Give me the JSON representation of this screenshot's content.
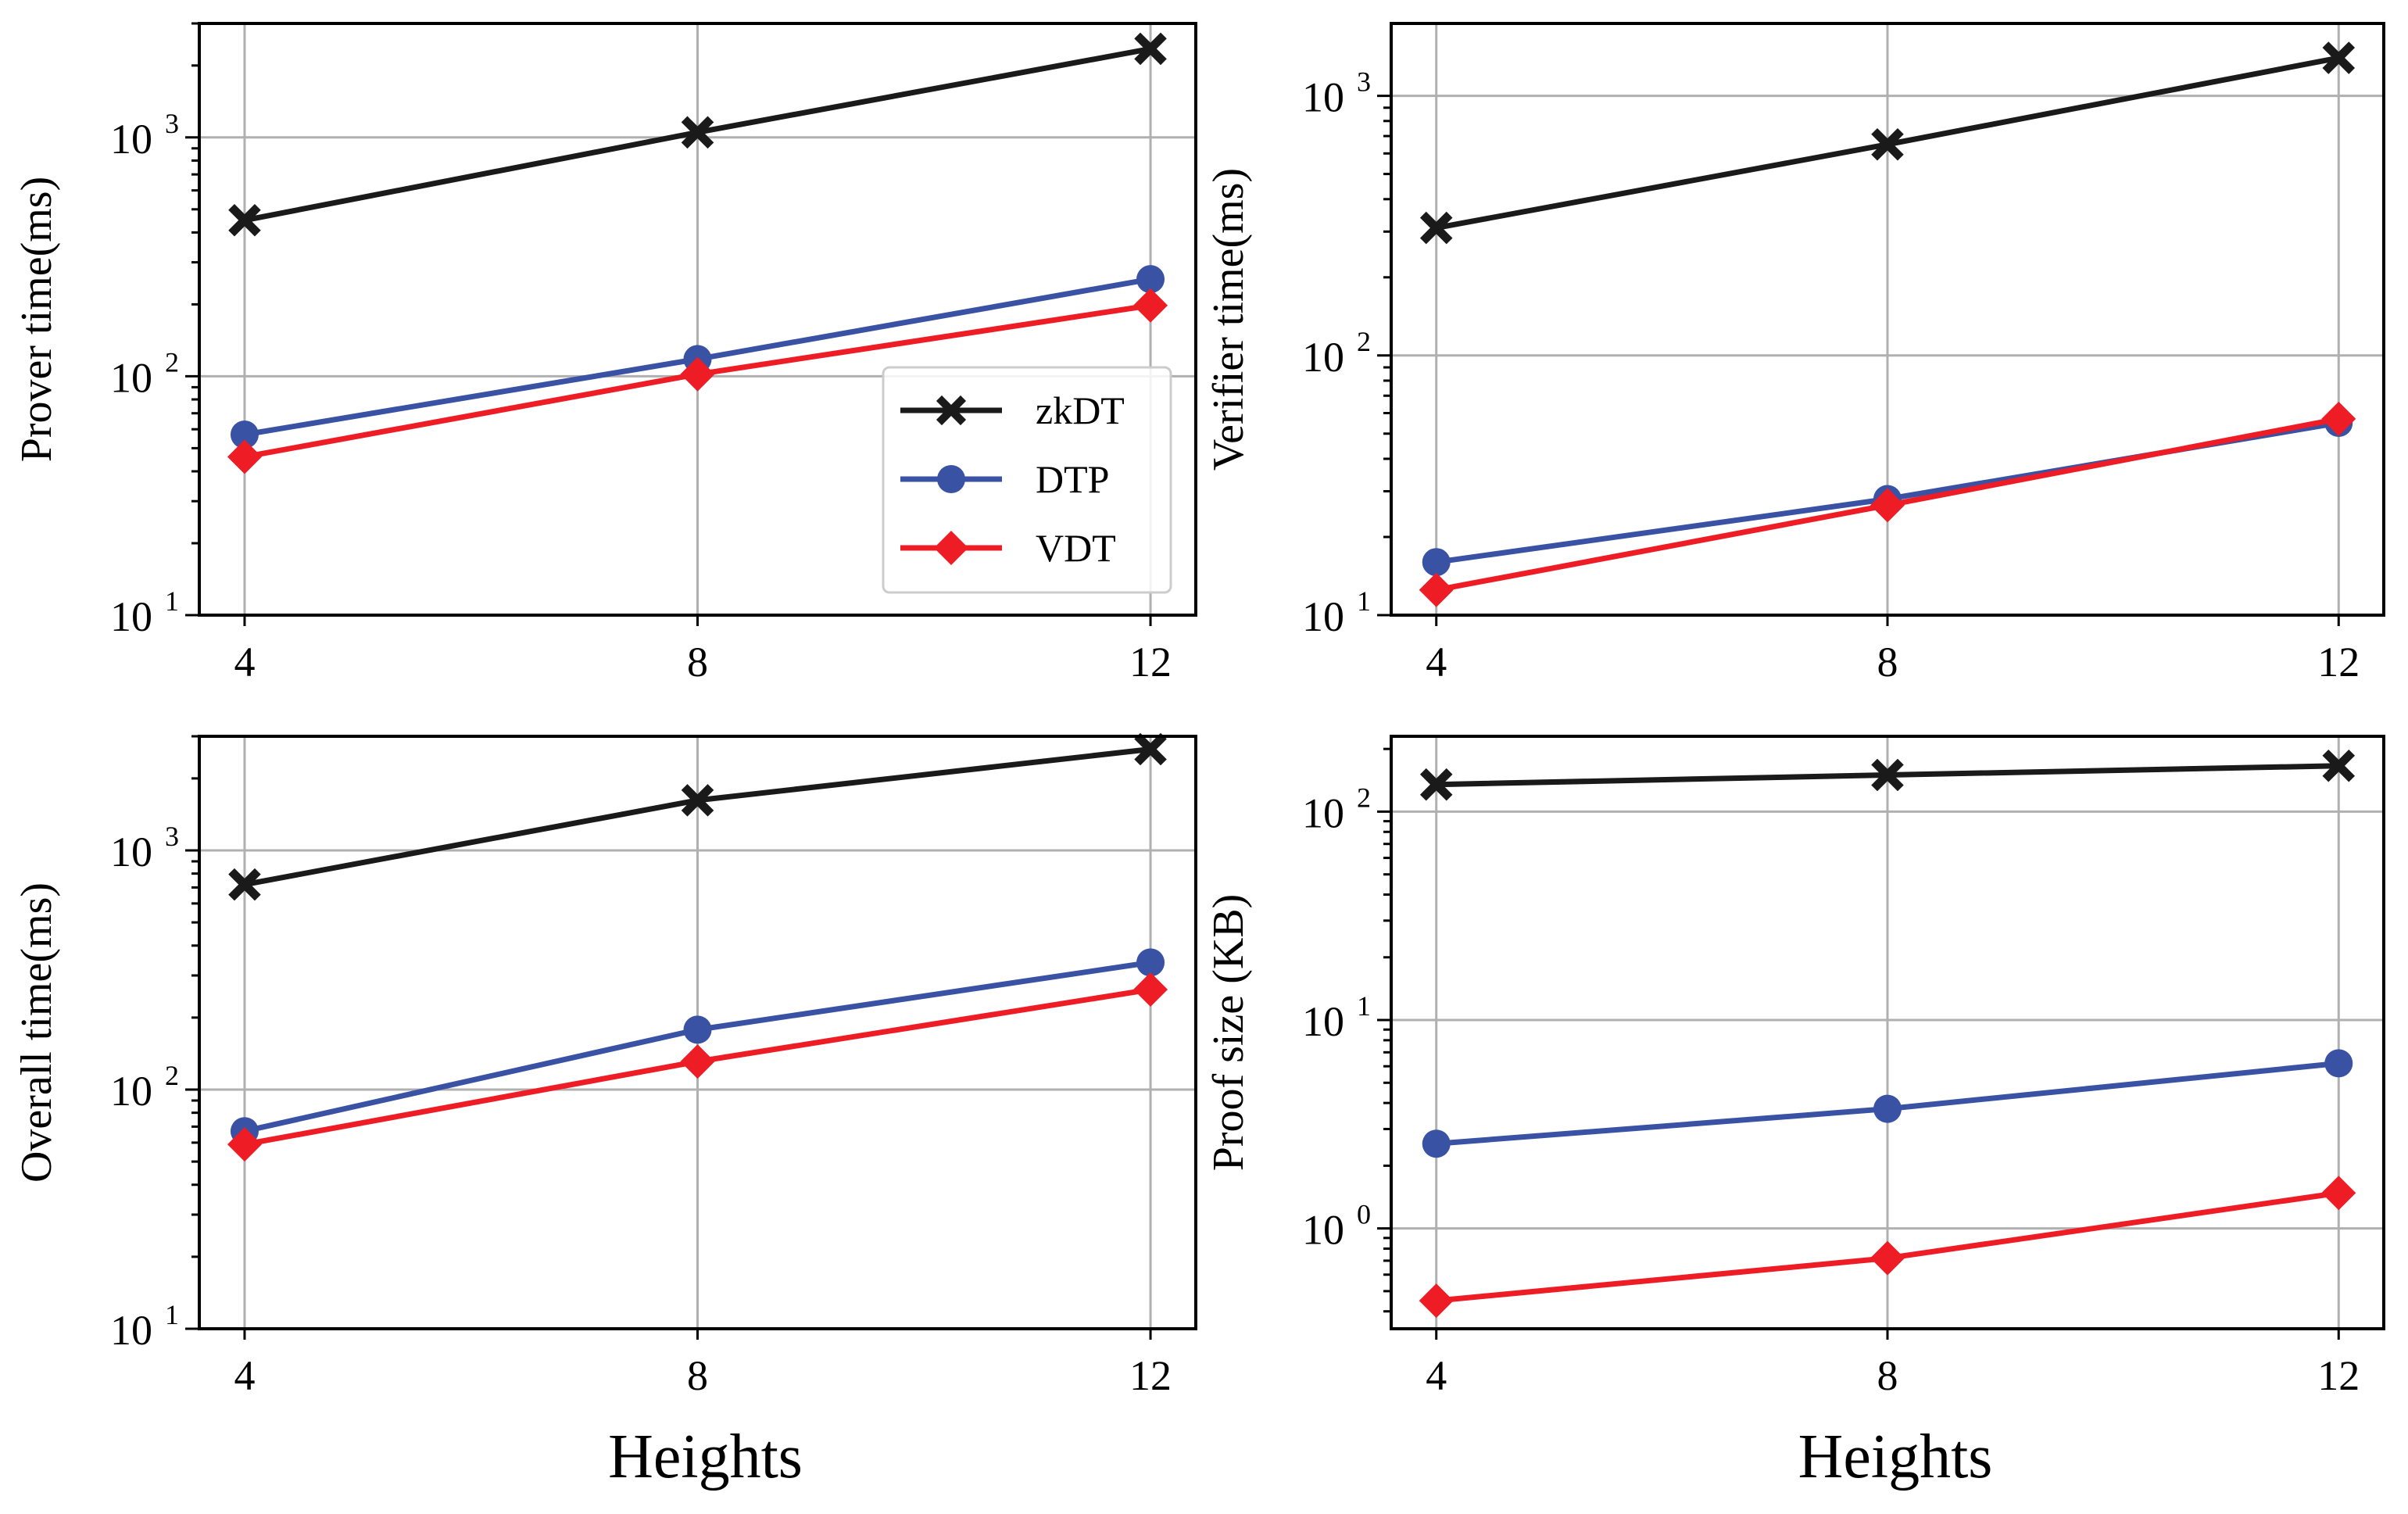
{
  "colors": {
    "zkDT": "#1a1a1a",
    "DTP": "#3a52a3",
    "VDT": "#ee1c25",
    "grid": "#b0b0b0"
  },
  "legend": [
    {
      "name": "zkDT",
      "marker": "x"
    },
    {
      "name": "DTP",
      "marker": "circle"
    },
    {
      "name": "VDT",
      "marker": "diamond"
    }
  ],
  "chart_data": [
    {
      "id": "prover",
      "type": "line",
      "yscale": "log",
      "ylabel": "Prover time(ms)",
      "xlabel": "",
      "x": [
        4,
        8,
        12
      ],
      "xticks": [
        "4",
        "8",
        "12"
      ],
      "xlim": [
        3.6,
        12.4
      ],
      "ylim": [
        10,
        3000
      ],
      "yticks": [
        {
          "base": "10",
          "exp": "1",
          "value": 10
        },
        {
          "base": "10",
          "exp": "2",
          "value": 100
        },
        {
          "base": "10",
          "exp": "3",
          "value": 1000
        }
      ],
      "grid": true,
      "legend": "center-right",
      "series": [
        {
          "name": "zkDT",
          "values": [
            450,
            1050,
            2350
          ]
        },
        {
          "name": "DTP",
          "values": [
            57,
            118,
            255
          ]
        },
        {
          "name": "VDT",
          "values": [
            46,
            102,
            198
          ]
        }
      ]
    },
    {
      "id": "verifier",
      "type": "line",
      "yscale": "log",
      "ylabel": "Verifier time(ms)",
      "xlabel": "",
      "x": [
        4,
        8,
        12
      ],
      "xticks": [
        "4",
        "8",
        "12"
      ],
      "xlim": [
        3.6,
        12.4
      ],
      "ylim": [
        10,
        1900
      ],
      "yticks": [
        {
          "base": "10",
          "exp": "1",
          "value": 10
        },
        {
          "base": "10",
          "exp": "2",
          "value": 100
        },
        {
          "base": "10",
          "exp": "3",
          "value": 1000
        }
      ],
      "grid": true,
      "series": [
        {
          "name": "zkDT",
          "values": [
            310,
            650,
            1400
          ]
        },
        {
          "name": "DTP",
          "values": [
            16,
            28,
            55
          ]
        },
        {
          "name": "VDT",
          "values": [
            12.5,
            26.5,
            57
          ]
        }
      ]
    },
    {
      "id": "overall",
      "type": "line",
      "yscale": "log",
      "ylabel": "Overall time(ms)",
      "xlabel": "Heights",
      "x": [
        4,
        8,
        12
      ],
      "xticks": [
        "4",
        "8",
        "12"
      ],
      "xlim": [
        3.6,
        12.4
      ],
      "ylim": [
        10,
        3000
      ],
      "yticks": [
        {
          "base": "10",
          "exp": "1",
          "value": 10
        },
        {
          "base": "10",
          "exp": "2",
          "value": 100
        },
        {
          "base": "10",
          "exp": "3",
          "value": 1000
        }
      ],
      "grid": true,
      "series": [
        {
          "name": "zkDT",
          "values": [
            720,
            1620,
            2650
          ]
        },
        {
          "name": "DTP",
          "values": [
            67,
            178,
            340
          ]
        },
        {
          "name": "VDT",
          "values": [
            59,
            131,
            262
          ]
        }
      ]
    },
    {
      "id": "proofsize",
      "type": "line",
      "yscale": "log",
      "ylabel": "Proof size (KB)",
      "xlabel": "Heights",
      "x": [
        4,
        8,
        12
      ],
      "xticks": [
        "4",
        "8",
        "12"
      ],
      "xlim": [
        3.6,
        12.4
      ],
      "ylim": [
        0.33,
        230
      ],
      "yticks": [
        {
          "base": "10",
          "exp": "0",
          "value": 1
        },
        {
          "base": "10",
          "exp": "1",
          "value": 10
        },
        {
          "base": "10",
          "exp": "2",
          "value": 100
        }
      ],
      "grid": true,
      "series": [
        {
          "name": "zkDT",
          "values": [
            135,
            150,
            166
          ]
        },
        {
          "name": "DTP",
          "values": [
            2.55,
            3.75,
            6.2
          ]
        },
        {
          "name": "VDT",
          "values": [
            0.45,
            0.72,
            1.48
          ]
        }
      ]
    }
  ]
}
